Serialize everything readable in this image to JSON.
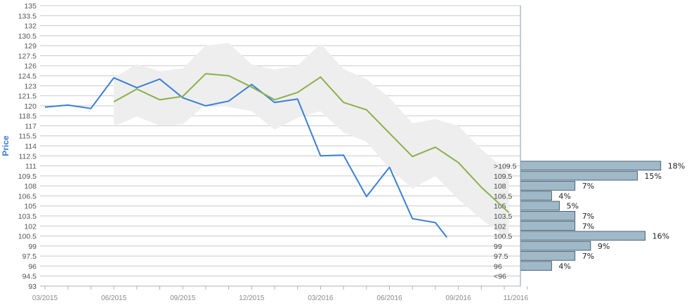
{
  "chart_data": {
    "type": "line",
    "ylabel": "Price",
    "ylim": [
      93,
      135
    ],
    "y_ticks": [
      "135",
      "133.5",
      "132",
      "130.5",
      "129",
      "127.5",
      "126",
      "124.5",
      "123",
      "121.5",
      "120",
      "118.5",
      "117",
      "115.5",
      "114",
      "112.5",
      "111",
      "109.5",
      "108",
      "106.5",
      "105",
      "103.5",
      "102",
      "100.5",
      "99",
      "97.5",
      "96",
      "94.5",
      "93"
    ],
    "x_tick_labels": [
      "03/2015",
      "06/2015",
      "09/2015",
      "12/2015",
      "03/2016",
      "06/2016",
      "09/2016",
      "11/2016"
    ],
    "x_tick_months": [
      0,
      3,
      6,
      9,
      12,
      15,
      18,
      20.5
    ],
    "grid": true,
    "series": [
      {
        "color": "#3a7fd5",
        "x": [
          0,
          1,
          2,
          3,
          4,
          5,
          6,
          7,
          8,
          9,
          10,
          11,
          12,
          13,
          14,
          15,
          16,
          17,
          17.5
        ],
        "values": [
          119.8,
          120.1,
          119.6,
          124.2,
          122.7,
          124.0,
          121.2,
          120.0,
          120.7,
          123.2,
          120.5,
          121.0,
          112.5,
          112.6,
          106.4,
          110.8,
          103.1,
          102.5,
          100.3
        ]
      },
      {
        "color": "#8ab04a",
        "x": [
          3,
          4,
          5,
          6,
          7,
          8,
          9,
          10,
          11,
          12,
          13,
          14,
          15,
          16,
          17,
          18,
          19,
          20.2
        ],
        "values": [
          120.6,
          122.5,
          120.9,
          121.4,
          124.8,
          124.5,
          122.8,
          120.9,
          122.0,
          124.3,
          120.5,
          119.4,
          115.9,
          112.4,
          113.8,
          111.5,
          107.8,
          104.0
        ]
      }
    ],
    "band": {
      "color": "#eeeeee",
      "x": [
        3,
        4,
        5,
        6,
        7,
        8,
        9,
        10,
        11,
        12,
        13,
        14,
        15,
        16,
        17,
        18,
        19,
        20.2
      ],
      "upper": [
        124.2,
        126.2,
        125.2,
        125.6,
        129.0,
        129.4,
        126.2,
        125.4,
        126.0,
        129.3,
        125.5,
        124.0,
        121.2,
        117.4,
        118.0,
        117.0,
        113.5,
        110.0
      ],
      "lower": [
        116.9,
        118.4,
        117.0,
        117.2,
        120.2,
        119.8,
        119.2,
        116.4,
        118.2,
        119.2,
        116.0,
        114.6,
        110.6,
        107.6,
        109.5,
        106.0,
        103.0,
        100.0
      ]
    },
    "distribution": {
      "color": "#9fb9c8",
      "buckets": [
        {
          "label": ">109.5",
          "percent": "18%",
          "value": 18
        },
        {
          "label": "109.5",
          "percent": "15%",
          "value": 15
        },
        {
          "label": "108",
          "percent": "7%",
          "value": 7
        },
        {
          "label": "106.5",
          "percent": "4%",
          "value": 4
        },
        {
          "label": "105",
          "percent": "5%",
          "value": 5
        },
        {
          "label": "103.5",
          "percent": "7%",
          "value": 7
        },
        {
          "label": "102",
          "percent": "7%",
          "value": 7
        },
        {
          "label": "100.5",
          "percent": "16%",
          "value": 16
        },
        {
          "label": "99",
          "percent": "9%",
          "value": 9
        },
        {
          "label": "97.5",
          "percent": "7%",
          "value": 7
        },
        {
          "label": "96",
          "percent": "4%",
          "value": 4
        },
        {
          "label": "<96",
          "percent": "",
          "value": 0
        }
      ]
    }
  }
}
